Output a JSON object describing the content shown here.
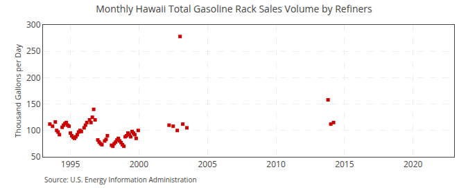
{
  "chart_data": {
    "type": "scatter",
    "title": "Monthly Hawaii Total Gasoline Rack Sales Volume by Refiners",
    "ylabel": "Thousand Gallons per Day",
    "annotations": [
      "Source: U.S. Energy Information Administration"
    ],
    "color": "#cc0000",
    "marker": "square",
    "grid": true,
    "xlim": [
      1993.0,
      2023.0
    ],
    "ylim": [
      50,
      300
    ],
    "xticks": [
      1995,
      2000,
      2005,
      2010,
      2015,
      2020
    ],
    "yticks": [
      50,
      100,
      150,
      200,
      250,
      300
    ],
    "x": [
      1993.5,
      1993.7,
      1993.9,
      1994.0,
      1994.1,
      1994.2,
      1994.4,
      1994.5,
      1994.6,
      1994.7,
      1994.8,
      1994.9,
      1995.0,
      1995.1,
      1995.2,
      1995.3,
      1995.4,
      1995.5,
      1995.6,
      1995.7,
      1995.8,
      1996.0,
      1996.1,
      1996.2,
      1996.4,
      1996.5,
      1996.6,
      1996.7,
      1996.8,
      1997.0,
      1997.1,
      1997.2,
      1997.3,
      1997.5,
      1997.6,
      1997.7,
      1998.0,
      1998.1,
      1998.2,
      1998.3,
      1998.4,
      1998.5,
      1998.6,
      1998.7,
      1998.8,
      1998.9,
      1999.0,
      1999.1,
      1999.2,
      1999.3,
      1999.4,
      1999.5,
      1999.6,
      1999.7,
      1999.8,
      1999.95,
      2002.2,
      2002.5,
      2002.8,
      2003.0,
      2003.2,
      2003.5,
      2013.8,
      2014.0,
      2014.2
    ],
    "values": [
      112,
      108,
      116,
      100,
      97,
      92,
      106,
      110,
      113,
      115,
      110,
      108,
      95,
      90,
      87,
      85,
      88,
      92,
      97,
      100,
      98,
      105,
      110,
      115,
      120,
      115,
      125,
      140,
      120,
      82,
      78,
      75,
      73,
      80,
      83,
      90,
      72,
      70,
      75,
      78,
      82,
      85,
      80,
      77,
      73,
      70,
      88,
      90,
      95,
      92,
      88,
      98,
      95,
      92,
      85,
      100,
      110,
      108,
      100,
      278,
      112,
      105,
      158,
      112,
      115
    ]
  }
}
